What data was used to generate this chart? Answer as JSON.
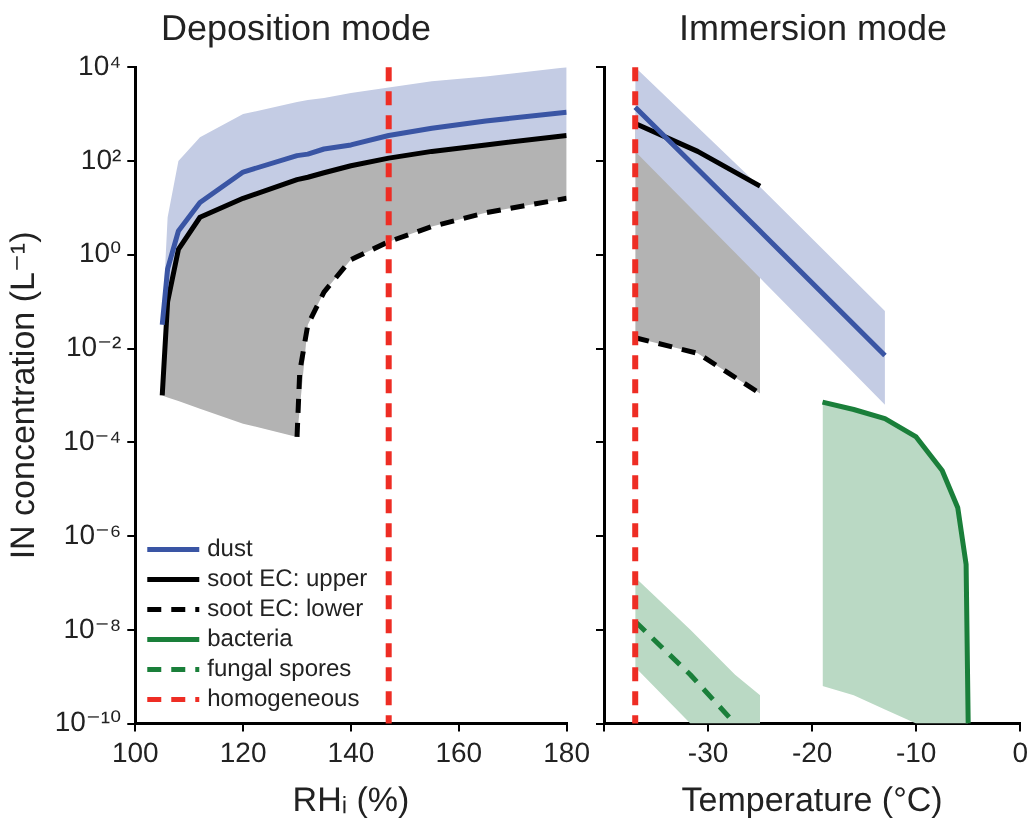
{
  "chart_data": [
    {
      "type": "line",
      "title": "Deposition mode",
      "xlabel": "RHᵢ (%)",
      "ylabel": "IN concentration (L⁻¹)",
      "log": true,
      "marker": "none",
      "line_style": "solid",
      "legend": "bottom left",
      "grid": false,
      "xlim": [
        100,
        180
      ],
      "xticks": [
        100,
        120,
        140,
        160,
        180
      ],
      "ylim": [
        1e-10,
        10000
      ],
      "yticks": [
        {
          "value": 1e-10,
          "label": "10⁻¹⁰"
        },
        {
          "value": 1e-08,
          "label": "10⁻⁸"
        },
        {
          "value": 1e-06,
          "label": "10⁻⁶"
        },
        {
          "value": 0.0001,
          "label": "10⁻⁴"
        },
        {
          "value": 0.01,
          "label": "10⁻²"
        },
        {
          "value": 1,
          "label": "10⁰"
        },
        {
          "value": 100,
          "label": "10²"
        },
        {
          "value": 10000,
          "label": "10⁴"
        }
      ],
      "series": [
        {
          "name": "dust",
          "color": "#3a55a4",
          "x": [
            105,
            106,
            108,
            112,
            120,
            130,
            132,
            135,
            140,
            147,
            155,
            165,
            180
          ],
          "values": [
            0.032,
            0.5,
            3.2,
            13,
            58,
            130,
            140,
            180,
            220,
            350,
            500,
            710,
            1100
          ],
          "lower": [
            0.032,
            0.1,
            1.3,
            6.3,
            16,
            40,
            45,
            56,
            79,
            115,
            160,
            220,
            350
          ],
          "upper": [
            0.032,
            6.3,
            100,
            320,
            1000,
            1800,
            2000,
            2200,
            2800,
            3700,
            5000,
            6300,
            10000
          ]
        },
        {
          "name": "soot EC: upper",
          "color": "#000000",
          "x": [
            105,
            106,
            108,
            112,
            120,
            130,
            132,
            135,
            140,
            147,
            155,
            165,
            180
          ],
          "values": [
            0.001,
            0.1,
            1.3,
            6.3,
            16,
            40,
            45,
            56,
            79,
            115,
            160,
            220,
            350
          ],
          "lower": [
            0.001,
            0.0009,
            0.00076,
            0.00052,
            0.00025,
            0.00013,
            0.032,
            0.16,
            0.79,
            1.9,
            4,
            7.9,
            16
          ],
          "upper": [
            0.001,
            0.1,
            1.3,
            6.3,
            16,
            40,
            45,
            56,
            79,
            115,
            160,
            220,
            350
          ]
        },
        {
          "name": "soot EC: lower",
          "color": "#000000",
          "line_style": "dashed",
          "x": [
            130,
            130.5,
            132,
            135,
            140,
            147,
            155,
            165,
            180
          ],
          "values": [
            0.00013,
            0.0032,
            0.032,
            0.16,
            0.79,
            1.9,
            4,
            7.9,
            16
          ]
        },
        {
          "name": "bacteria",
          "color": "#1a7f3a"
        },
        {
          "name": "fungal spores",
          "color": "#1a7f3a",
          "line_style": "dashed"
        }
      ],
      "ref_lines": [
        {
          "axis": "x",
          "value": 147,
          "label": "homogeneous",
          "color": "#ee2d24",
          "line_style": "dashed"
        }
      ]
    },
    {
      "type": "line",
      "title": "Immersion mode",
      "xlabel": "Temperature (°C)",
      "log": true,
      "marker": "none",
      "line_style": "solid",
      "grid": false,
      "tick_labels": "x",
      "xlim": [
        -40,
        0
      ],
      "xticks": [
        {
          "value": -40,
          "label": null
        },
        -30,
        -20,
        -10,
        0
      ],
      "ylim": [
        1e-10,
        10000
      ],
      "yticks": [
        {
          "value": 1e-10,
          "label": null
        },
        {
          "value": 1e-08,
          "label": null
        },
        {
          "value": 1e-06,
          "label": null
        },
        {
          "value": 0.0001,
          "label": null
        },
        {
          "value": 0.01,
          "label": null
        },
        {
          "value": 1,
          "label": null
        },
        {
          "value": 100,
          "label": null
        },
        {
          "value": 10000,
          "label": null
        }
      ],
      "series": [
        {
          "color": "#3a55a4",
          "x": [
            -37,
            -25,
            -13
          ],
          "values": [
            1400,
            3.2,
            0.0071
          ],
          "lower": [
            160,
            0.32,
            0.00063
          ],
          "upper": [
            10000,
            28,
            0.063
          ]
        },
        {
          "color": "#000000",
          "x": [
            -37,
            -31,
            -25
          ],
          "values": [
            630,
            160,
            29
          ],
          "lower": [
            0.017,
            0.0079,
            0.0011
          ],
          "upper": [
            630,
            160,
            29
          ]
        },
        {
          "color": "#000000",
          "line_style": "dashed",
          "x": [
            -37,
            -31,
            -25
          ],
          "values": [
            0.017,
            0.0079,
            0.0011
          ]
        },
        {
          "color": "#1a7f3a",
          "x": [
            -19,
            -16,
            -13,
            -10,
            -7.5,
            -6,
            -5.2,
            -5
          ],
          "values": [
            0.00072,
            0.0005,
            0.00032,
            0.00013,
            2.5e-05,
            4e-06,
            2.5e-07,
            1e-10
          ],
          "lower": [
            6.3e-10,
            4e-10,
            2e-10,
            1e-10,
            1e-10,
            1e-10,
            1e-10,
            1e-10
          ],
          "upper": [
            0.00072,
            0.0005,
            0.00032,
            0.00013,
            2.5e-05,
            4e-06,
            2.5e-07,
            1e-10
          ]
        },
        {
          "color": "#1a7f3a",
          "line_style": "dashed",
          "x": [
            -37,
            -31.7,
            -27.4,
            -25
          ],
          "values": [
            1.5e-08,
            1.1e-09,
            1e-10,
            null
          ],
          "lower": [
            1.6e-09,
            1e-10,
            1e-10,
            1e-10
          ],
          "upper": [
            1.3e-07,
            1e-08,
            1.1e-09,
            4e-10
          ]
        }
      ],
      "ref_lines": [
        {
          "axis": "x",
          "value": -37,
          "color": "#ee2d24",
          "line_style": "dashed"
        }
      ]
    }
  ]
}
